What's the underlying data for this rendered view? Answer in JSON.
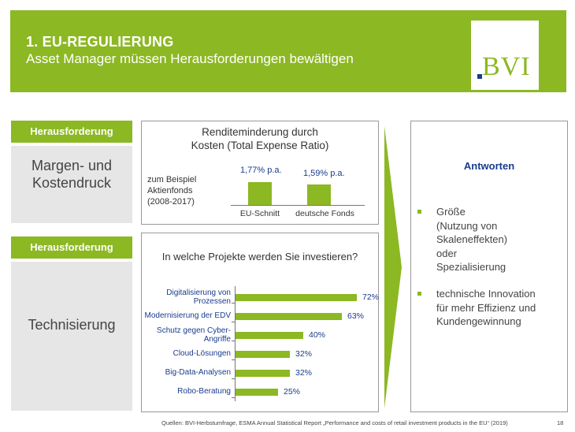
{
  "header": {
    "title": "1.  EU-REGULIERUNG",
    "subtitle": "Asset Manager müssen Herausforderungen bewältigen",
    "logo": "BVI"
  },
  "challenges": [
    {
      "tag": "Herausforderung",
      "line1": "Margen- und",
      "line2": "Kostendruck"
    },
    {
      "tag": "Herausforderung",
      "line1": "Technisierung"
    }
  ],
  "ter": {
    "title_line1": "Renditeminderung durch",
    "title_line2": "Kosten (Total Expense Ratio)",
    "example_lines": [
      "zum Beispiel",
      "Aktienfonds",
      "(2008-2017)"
    ]
  },
  "projects": {
    "title": "In welche Projekte werden Sie investieren?"
  },
  "chart_data": [
    {
      "type": "bar",
      "title": "Renditeminderung durch Kosten (Total Expense Ratio)",
      "categories": [
        "EU-Schnitt",
        "deutsche Fonds"
      ],
      "values": [
        1.77,
        1.59
      ],
      "labels": [
        "1,77% p.a.",
        "1,59% p.a."
      ],
      "ylabel": "% p.a.",
      "ylim": [
        0,
        2
      ]
    },
    {
      "type": "bar",
      "orientation": "horizontal",
      "title": "In welche Projekte werden Sie investieren?",
      "categories": [
        [
          "Digitalisierung von",
          "Prozessen"
        ],
        [
          "Modernisierung der EDV"
        ],
        [
          "Schutz gegen Cyber-",
          "Angriffe"
        ],
        [
          "Cloud-Lösungen"
        ],
        [
          "Big-Data-Analysen"
        ],
        [
          "Robo-Beratung"
        ]
      ],
      "values": [
        72,
        63,
        40,
        32,
        32,
        25
      ],
      "labels": [
        "72%",
        "63%",
        "40%",
        "32%",
        "32%",
        "25%"
      ],
      "xlim": [
        0,
        100
      ]
    }
  ],
  "answers": {
    "title": "Antworten",
    "items": [
      [
        "Größe",
        "(Nutzung von",
        "Skaleneffekten)",
        "oder",
        "Spezialisierung"
      ],
      [
        "technische Innovation",
        "für mehr Effizienz und",
        "Kundengewinnung"
      ]
    ]
  },
  "colors": {
    "green": "#8cb823",
    "blue": "#1a3c8c",
    "gray": "#e6e6e6"
  },
  "footer": {
    "source": "Quellen: BVI-Herbstumfrage, ESMA Annual Statistical Report „Performance and costs of retail investment products in the EU“ (2019)",
    "page": "18"
  }
}
